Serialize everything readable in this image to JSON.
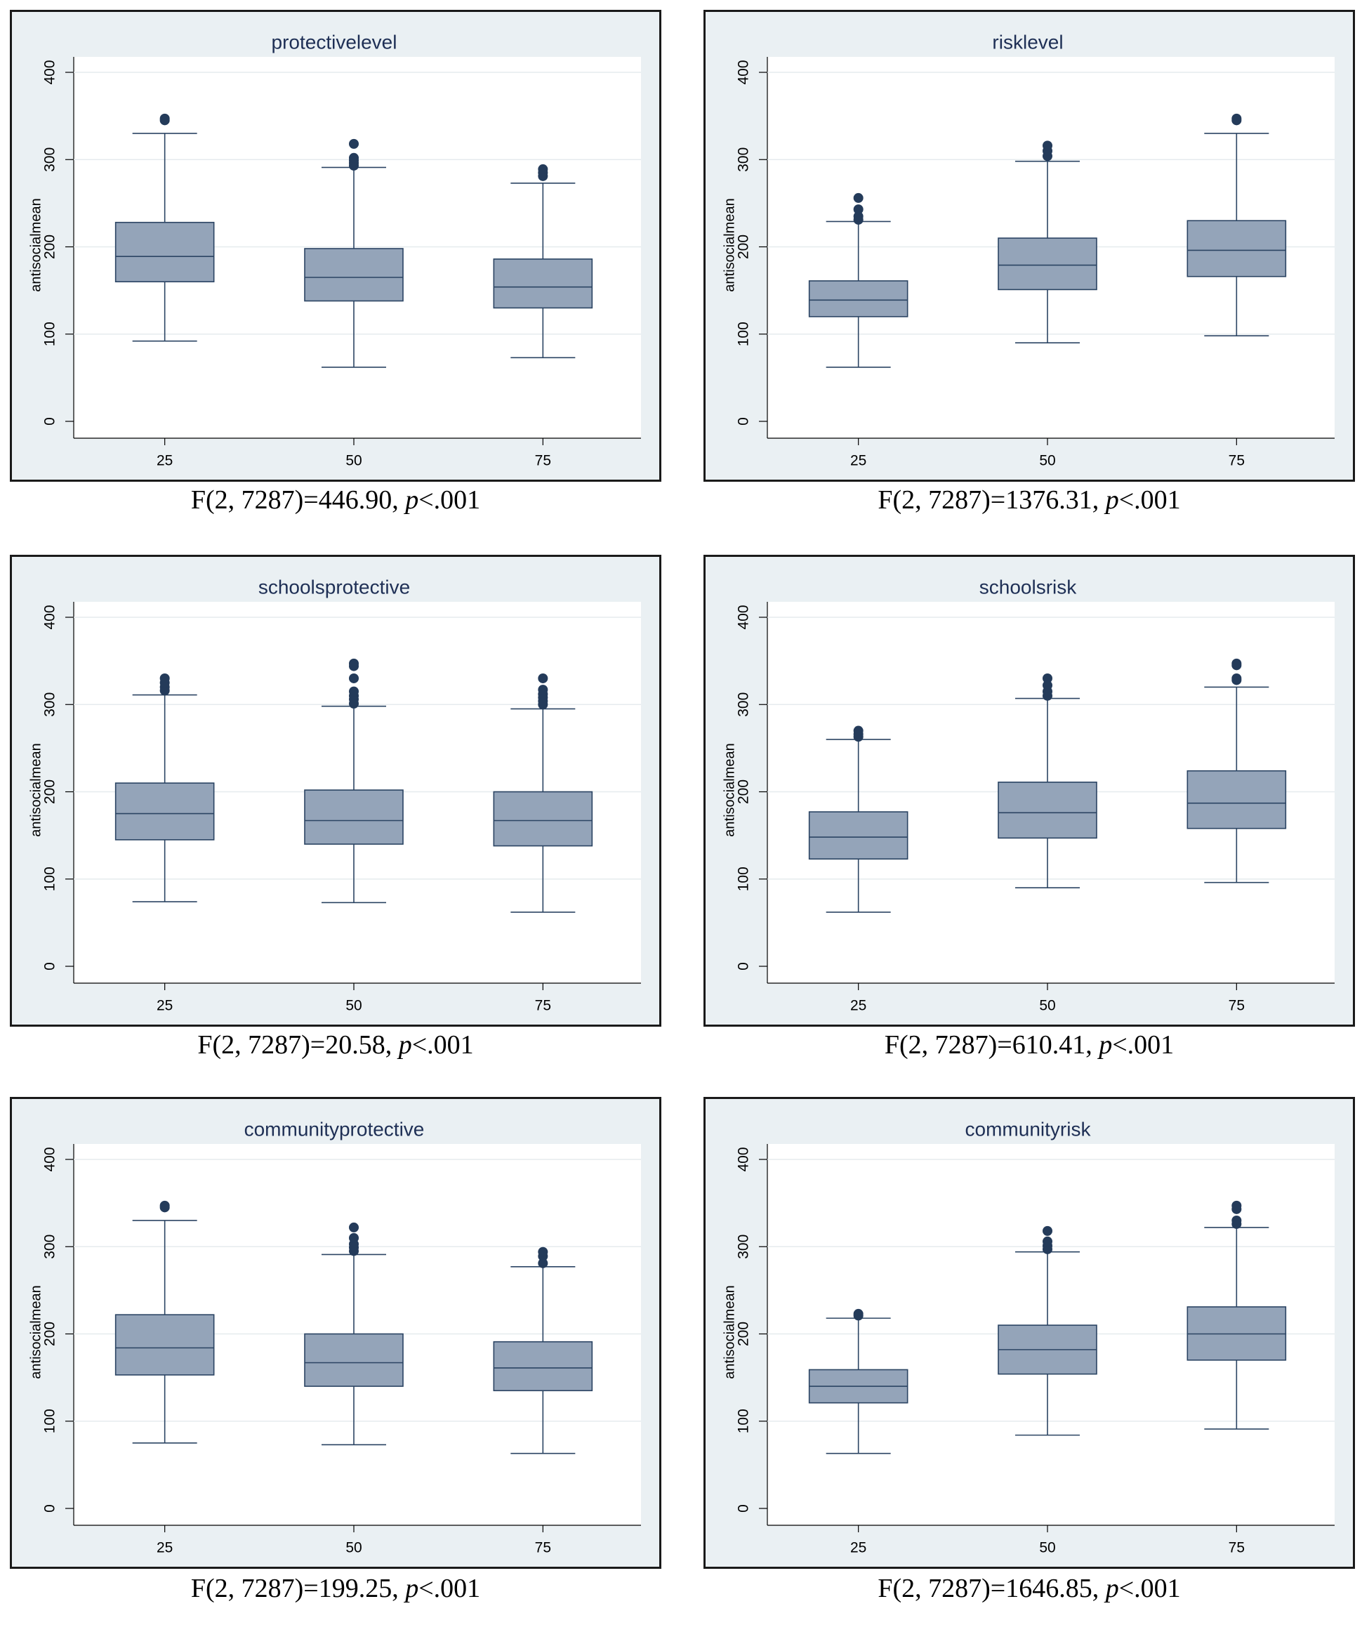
{
  "chart_data": [
    {
      "type": "box",
      "title": "protectivelevel",
      "ylabel": "antisocialmean",
      "ylim": [
        0,
        420
      ],
      "yticks": [
        "0",
        "100",
        "200",
        "300",
        "400"
      ],
      "categories": [
        "25",
        "50",
        "75"
      ],
      "boxes": [
        {
          "whisker_low": 92,
          "q1": 160,
          "median": 189,
          "q3": 228,
          "whisker_high": 330,
          "outliers": [
            345,
            347
          ]
        },
        {
          "whisker_low": 62,
          "q1": 138,
          "median": 165,
          "q3": 198,
          "whisker_high": 291,
          "outliers": [
            293,
            296,
            299,
            302,
            318
          ]
        },
        {
          "whisker_low": 73,
          "q1": 130,
          "median": 154,
          "q3": 186,
          "whisker_high": 273,
          "outliers": [
            281,
            285,
            289
          ]
        }
      ],
      "caption": {
        "f_label": "F(2, 7287)=446.90, ",
        "p_letter": "p",
        "p_label": "<.001"
      }
    },
    {
      "type": "box",
      "title": "risklevel",
      "ylabel": "antisocialmean",
      "ylim": [
        0,
        420
      ],
      "yticks": [
        "0",
        "100",
        "200",
        "300",
        "400"
      ],
      "categories": [
        "25",
        "50",
        "75"
      ],
      "boxes": [
        {
          "whisker_low": 62,
          "q1": 120,
          "median": 139,
          "q3": 161,
          "whisker_high": 229,
          "outliers": [
            231,
            235,
            243,
            256
          ]
        },
        {
          "whisker_low": 90,
          "q1": 151,
          "median": 179,
          "q3": 210,
          "whisker_high": 298,
          "outliers": [
            304,
            310,
            316
          ]
        },
        {
          "whisker_low": 98,
          "q1": 166,
          "median": 196,
          "q3": 230,
          "whisker_high": 330,
          "outliers": [
            345,
            347
          ]
        }
      ],
      "caption": {
        "f_label": "F(2, 7287)=1376.31, ",
        "p_letter": "p",
        "p_label": "<.001"
      }
    },
    {
      "type": "box",
      "title": "schoolsprotective",
      "ylabel": "antisocialmean",
      "ylim": [
        0,
        420
      ],
      "yticks": [
        "0",
        "100",
        "200",
        "300",
        "400"
      ],
      "categories": [
        "25",
        "50",
        "75"
      ],
      "boxes": [
        {
          "whisker_low": 74,
          "q1": 145,
          "median": 175,
          "q3": 210,
          "whisker_high": 311,
          "outliers": [
            316,
            320,
            325,
            330
          ]
        },
        {
          "whisker_low": 73,
          "q1": 140,
          "median": 167,
          "q3": 202,
          "whisker_high": 298,
          "outliers": [
            301,
            306,
            310,
            315,
            330,
            344,
            347
          ]
        },
        {
          "whisker_low": 62,
          "q1": 138,
          "median": 167,
          "q3": 200,
          "whisker_high": 295,
          "outliers": [
            300,
            304,
            308,
            312,
            317,
            330
          ]
        }
      ],
      "caption": {
        "f_label": "F(2, 7287)=20.58, ",
        "p_letter": "p",
        "p_label": "<.001"
      }
    },
    {
      "type": "box",
      "title": "schoolsrisk",
      "ylabel": "antisocialmean",
      "ylim": [
        0,
        420
      ],
      "yticks": [
        "0",
        "100",
        "200",
        "300",
        "400"
      ],
      "categories": [
        "25",
        "50",
        "75"
      ],
      "boxes": [
        {
          "whisker_low": 62,
          "q1": 123,
          "median": 148,
          "q3": 177,
          "whisker_high": 260,
          "outliers": [
            263,
            266,
            270
          ]
        },
        {
          "whisker_low": 90,
          "q1": 147,
          "median": 176,
          "q3": 211,
          "whisker_high": 307,
          "outliers": [
            310,
            315,
            322,
            330
          ]
        },
        {
          "whisker_low": 96,
          "q1": 158,
          "median": 187,
          "q3": 224,
          "whisker_high": 320,
          "outliers": [
            328,
            330,
            345,
            347
          ]
        }
      ],
      "caption": {
        "f_label": "F(2, 7287)=610.41, ",
        "p_letter": "p",
        "p_label": "<.001"
      }
    },
    {
      "type": "box",
      "title": "communityprotective",
      "ylabel": "antisocialmean",
      "ylim": [
        0,
        420
      ],
      "yticks": [
        "0",
        "100",
        "200",
        "300",
        "400"
      ],
      "categories": [
        "25",
        "50",
        "75"
      ],
      "boxes": [
        {
          "whisker_low": 75,
          "q1": 153,
          "median": 184,
          "q3": 222,
          "whisker_high": 330,
          "outliers": [
            345,
            347
          ]
        },
        {
          "whisker_low": 73,
          "q1": 140,
          "median": 167,
          "q3": 200,
          "whisker_high": 291,
          "outliers": [
            295,
            299,
            303,
            310,
            322
          ]
        },
        {
          "whisker_low": 63,
          "q1": 135,
          "median": 161,
          "q3": 191,
          "whisker_high": 277,
          "outliers": [
            281,
            289,
            294
          ]
        }
      ],
      "caption": {
        "f_label": "F(2, 7287)=199.25, ",
        "p_letter": "p",
        "p_label": "<.001"
      }
    },
    {
      "type": "box",
      "title": "communityrisk",
      "ylabel": "antisocialmean",
      "ylim": [
        0,
        420
      ],
      "yticks": [
        "0",
        "100",
        "200",
        "300",
        "400"
      ],
      "categories": [
        "25",
        "50",
        "75"
      ],
      "boxes": [
        {
          "whisker_low": 63,
          "q1": 121,
          "median": 140,
          "q3": 159,
          "whisker_high": 218,
          "outliers": [
            221,
            223
          ]
        },
        {
          "whisker_low": 84,
          "q1": 154,
          "median": 182,
          "q3": 210,
          "whisker_high": 294,
          "outliers": [
            297,
            301,
            306,
            318
          ]
        },
        {
          "whisker_low": 91,
          "q1": 170,
          "median": 200,
          "q3": 231,
          "whisker_high": 322,
          "outliers": [
            326,
            330,
            343,
            347
          ]
        }
      ],
      "caption": {
        "f_label": "F(2, 7287)=1646.85, ",
        "p_letter": "p",
        "p_label": "<.001"
      }
    }
  ]
}
